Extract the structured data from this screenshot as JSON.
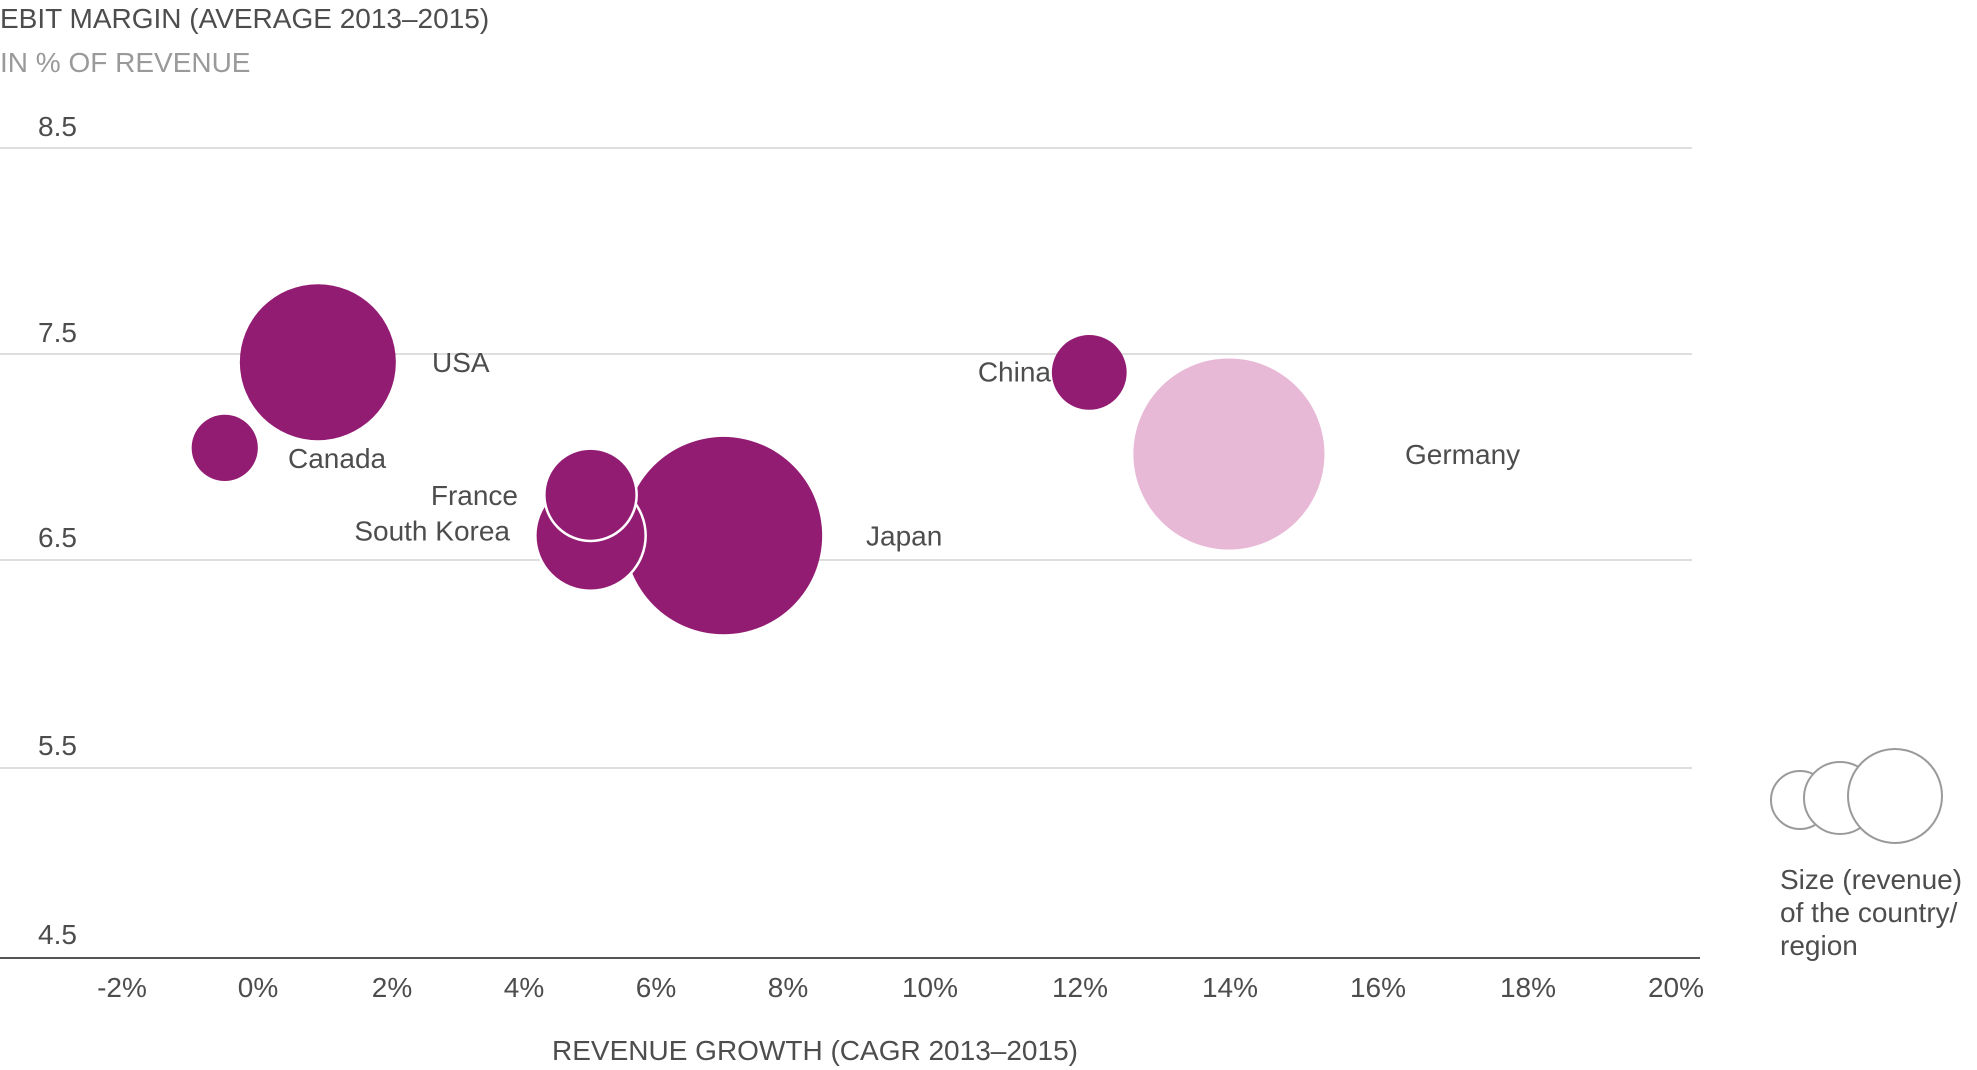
{
  "chart_data": {
    "type": "bubble",
    "title": "EBIT MARGIN (AVERAGE 2013–2015)",
    "subtitle": "IN % OF REVENUE",
    "xlabel": "REVENUE GROWTH (CAGR 2013–2015)",
    "ylabel": "",
    "xlim": [
      -3,
      21
    ],
    "ylim": [
      4.5,
      8.5
    ],
    "y_ticks": [
      "8.5",
      "7.5",
      "6.5",
      "5.5",
      "4.5"
    ],
    "x_ticks": [
      "-2%",
      "0%",
      "2%",
      "4%",
      "6%",
      "8%",
      "10%",
      "12%",
      "14%",
      "16%",
      "18%",
      "20%"
    ],
    "points": [
      {
        "label": "USA",
        "x": 0.9,
        "y": 7.45,
        "size": 1.0,
        "color": "#931c73"
      },
      {
        "label": "Canada",
        "x": -0.5,
        "y": 7.03,
        "size": 0.18,
        "color": "#931c73"
      },
      {
        "label": "France",
        "x": 5.0,
        "y": 6.8,
        "size": 0.35,
        "color": "#931c73"
      },
      {
        "label": "South Korea",
        "x": 5.0,
        "y": 6.6,
        "size": 0.5,
        "color": "#931c73"
      },
      {
        "label": "Japan",
        "x": 7.0,
        "y": 6.6,
        "size": 1.6,
        "color": "#931c73"
      },
      {
        "label": "China",
        "x": 12.5,
        "y": 7.4,
        "size": 0.23,
        "color": "#931c73"
      },
      {
        "label": "Germany",
        "x": 14.6,
        "y": 7.0,
        "size": 1.5,
        "color": "#e8b9d6"
      }
    ],
    "grid": true,
    "legend": {
      "position": "bottom-right",
      "text": [
        "Size (revenue)",
        "of the country/",
        "region"
      ]
    }
  }
}
